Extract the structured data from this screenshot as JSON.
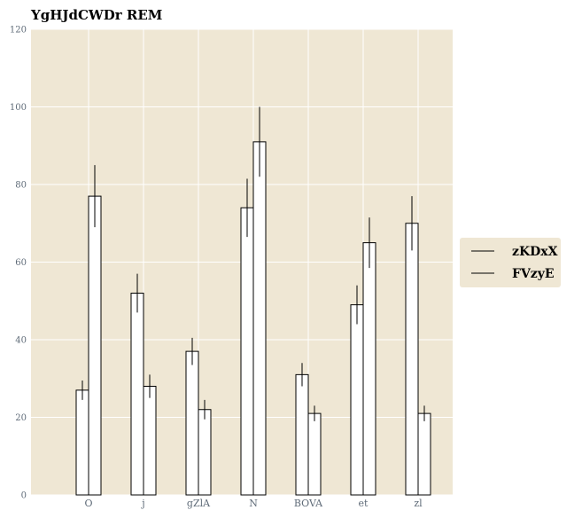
{
  "chart_data": {
    "type": "bar",
    "title": "YgHJdCWDr REM",
    "xlabel": "",
    "ylabel": "",
    "categories": [
      "O",
      "j",
      "gZlA",
      "N",
      "BOVA",
      "et",
      "zl"
    ],
    "series": [
      {
        "name": "zKDxX",
        "values": [
          27,
          52,
          37,
          74,
          31,
          49,
          70
        ],
        "errors": [
          2.5,
          5,
          3.5,
          7.5,
          3,
          5,
          7
        ]
      },
      {
        "name": "FVzyE",
        "values": [
          77,
          28,
          22,
          91,
          21,
          65,
          21
        ],
        "errors": [
          8,
          3,
          2.5,
          9,
          2,
          6.5,
          2
        ]
      }
    ],
    "ylim": [
      0,
      120
    ],
    "yticks": [
      0,
      20,
      40,
      60,
      80,
      100,
      120
    ],
    "grid": true,
    "legend_position": "right",
    "colors": {
      "background": "#efe7d4",
      "grid": "#ffffff",
      "bar_fill": "#ffffff",
      "bar_edge": "#000000",
      "tick_text": "#5f6b78"
    }
  }
}
